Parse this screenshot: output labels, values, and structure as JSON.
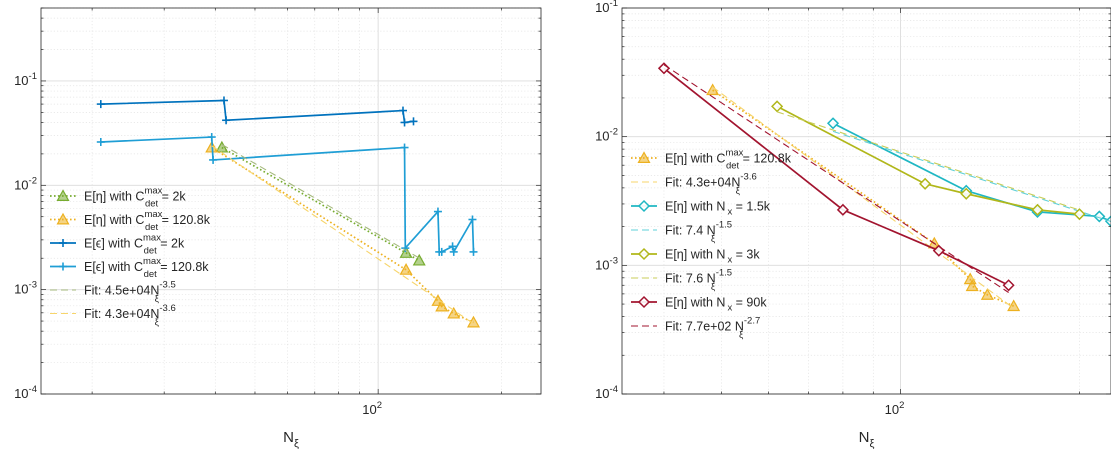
{
  "chart_data": [
    {
      "type": "line",
      "xlabel": "N_ξ",
      "xscale": "log",
      "yscale": "log",
      "xlim": [
        15,
        250
      ],
      "ylim": [
        0.0001,
        0.5
      ],
      "x_ticks": [
        {
          "value": 100,
          "label": "10",
          "exp": "2"
        }
      ],
      "y_ticks": [
        {
          "value": 0.0001,
          "label": "10",
          "exp": "-4"
        },
        {
          "value": 0.001,
          "label": "10",
          "exp": "-3"
        },
        {
          "value": 0.01,
          "label": "10",
          "exp": "-2"
        },
        {
          "value": 0.1,
          "label": "10",
          "exp": "-1"
        }
      ],
      "grid": true,
      "legend_position": "bottom-left",
      "series": [
        {
          "label": "E[η] with C",
          "sup": "max",
          "sub": "det",
          "tail": " = 2k",
          "color": "#77ac30",
          "style": "dotted",
          "marker": "triangle",
          "points": [
            [
              41.5,
              0.023
            ],
            [
              117,
              0.00225
            ],
            [
              126,
              0.0019
            ]
          ]
        },
        {
          "label": "E[η] with C",
          "sup": "max",
          "sub": "det",
          "tail": " = 120.8k",
          "color": "#edb120",
          "style": "dotted",
          "marker": "triangle",
          "points": [
            [
              39.2,
              0.023
            ],
            [
              117,
              0.00155
            ],
            [
              140,
              0.00078
            ],
            [
              143,
              0.00069
            ],
            [
              153,
              0.00059
            ],
            [
              171,
              0.000485
            ]
          ]
        },
        {
          "label": "E[ϵ] with C",
          "sup": "max",
          "sub": "det",
          "tail": " = 2k",
          "color": "#0072bd",
          "style": "solid",
          "marker": "plus",
          "points": [
            [
              21,
              0.06
            ],
            [
              42,
              0.065
            ],
            [
              42.5,
              0.042
            ],
            [
              115,
              0.052
            ],
            [
              116,
              0.04
            ],
            [
              122,
              0.041
            ]
          ]
        },
        {
          "label": "E[ϵ] with C",
          "sup": "max",
          "sub": "det",
          "tail": " = 120.8k",
          "color": "#1f9ed5",
          "style": "solid",
          "marker": "plus",
          "points": [
            [
              21,
              0.026
            ],
            [
              39.2,
              0.029
            ],
            [
              39.5,
              0.0175
            ],
            [
              116,
              0.023
            ],
            [
              116.5,
              0.0025
            ],
            [
              140,
              0.0056
            ],
            [
              141,
              0.0023
            ],
            [
              143,
              0.0023
            ],
            [
              152,
              0.0026
            ],
            [
              153,
              0.0023
            ],
            [
              170,
              0.0047
            ],
            [
              171,
              0.0023
            ]
          ]
        },
        {
          "label": "Fit: 4.5e+04N",
          "sup": "-3.5",
          "sub": "ξ",
          "tail": "",
          "color": "#a5b97d",
          "style": "dashed",
          "marker": "none",
          "fit": true,
          "points": [
            [
              41.5,
              0.0246
            ],
            [
              126,
              0.00201
            ]
          ]
        },
        {
          "label": "Fit: 4.3e+04N",
          "sup": "-3.6",
          "sub": "ξ",
          "tail": "",
          "color": "#f7d56b",
          "style": "dashed",
          "marker": "none",
          "fit": true,
          "points": [
            [
              39.2,
              0.0239
            ],
            [
              171,
              0.000472
            ]
          ]
        }
      ]
    },
    {
      "type": "line",
      "xlabel": "N_ξ",
      "xscale": "log",
      "yscale": "log",
      "xlim": [
        34,
        226
      ],
      "ylim": [
        0.0001,
        0.1
      ],
      "x_ticks": [
        {
          "value": 100,
          "label": "10",
          "exp": "2"
        }
      ],
      "y_ticks": [
        {
          "value": 0.0001,
          "label": "10",
          "exp": "-4"
        },
        {
          "value": 0.001,
          "label": "10",
          "exp": "-3"
        },
        {
          "value": 0.01,
          "label": "10",
          "exp": "-2"
        },
        {
          "value": 0.1,
          "label": "10",
          "exp": "-1"
        }
      ],
      "grid": true,
      "legend_position": "left",
      "series": [
        {
          "label": "E[η] with C",
          "sup": "max",
          "sub": "det",
          "tail": " = 120.8k",
          "color": "#edb120",
          "style": "dotted",
          "marker": "triangle",
          "points": [
            [
              48.3,
              0.023
            ],
            [
              114,
              0.00148
            ],
            [
              131,
              0.00078
            ],
            [
              132,
              0.00069
            ],
            [
              140,
              0.00059
            ],
            [
              155,
              0.000482
            ]
          ]
        },
        {
          "label": "Fit: 4.3e+04N",
          "sup": "-3.6",
          "sub": "ξ",
          "tail": "",
          "color": "#f7d56b",
          "style": "dashed",
          "marker": "none",
          "fit": true,
          "points": [
            [
              48.3,
              0.0243
            ],
            [
              155,
              0.000464
            ]
          ]
        },
        {
          "label": "E[η] with N",
          "sup": "",
          "sub": "x",
          "tail": " = 1.5k",
          "color": "#1fb7c3",
          "style": "solid",
          "marker": "diamond",
          "points": [
            [
              77,
              0.0127
            ],
            [
              129,
              0.0038
            ],
            [
              170,
              0.0026
            ],
            [
              216,
              0.0024
            ],
            [
              226,
              0.0022
            ]
          ]
        },
        {
          "label": "Fit: 7.4 N",
          "sup": "-1.5",
          "sub": "ξ",
          "tail": "",
          "color": "#5fd0d8",
          "style": "dashed",
          "marker": "none",
          "fit": true,
          "points": [
            [
              77,
              0.011
            ],
            [
              226,
              0.00219
            ]
          ]
        },
        {
          "label": "E[η] with N",
          "sup": "",
          "sub": "x",
          "tail": " = 3k",
          "color": "#b1b71a",
          "style": "solid",
          "marker": "diamond",
          "points": [
            [
              62,
              0.0172
            ],
            [
              110,
              0.0043
            ],
            [
              129,
              0.0036
            ],
            [
              170,
              0.0027
            ],
            [
              200,
              0.0025
            ]
          ]
        },
        {
          "label": "Fit: 7.6 N",
          "sup": "-1.5",
          "sub": "ξ",
          "tail": "",
          "color": "#c8cc58",
          "style": "dashed",
          "marker": "none",
          "fit": true,
          "points": [
            [
              62,
              0.0156
            ],
            [
              200,
              0.00269
            ]
          ]
        },
        {
          "label": "E[η] with N",
          "sup": "",
          "sub": "x",
          "tail": " = 90k",
          "color": "#a2142f",
          "style": "solid",
          "marker": "diamond",
          "points": [
            [
              40,
              0.034
            ],
            [
              80,
              0.0027
            ],
            [
              116,
              0.0013
            ],
            [
              152,
              0.0007
            ]
          ]
        },
        {
          "label": "Fit: 7.7e+02 N",
          "sup": "-2.7",
          "sub": "ξ",
          "tail": "",
          "color": "#a2142f",
          "style": "dashed",
          "marker": "none",
          "fit": true,
          "points": [
            [
              40,
              0.0362
            ],
            [
              152,
              0.000615
            ]
          ]
        }
      ]
    }
  ]
}
